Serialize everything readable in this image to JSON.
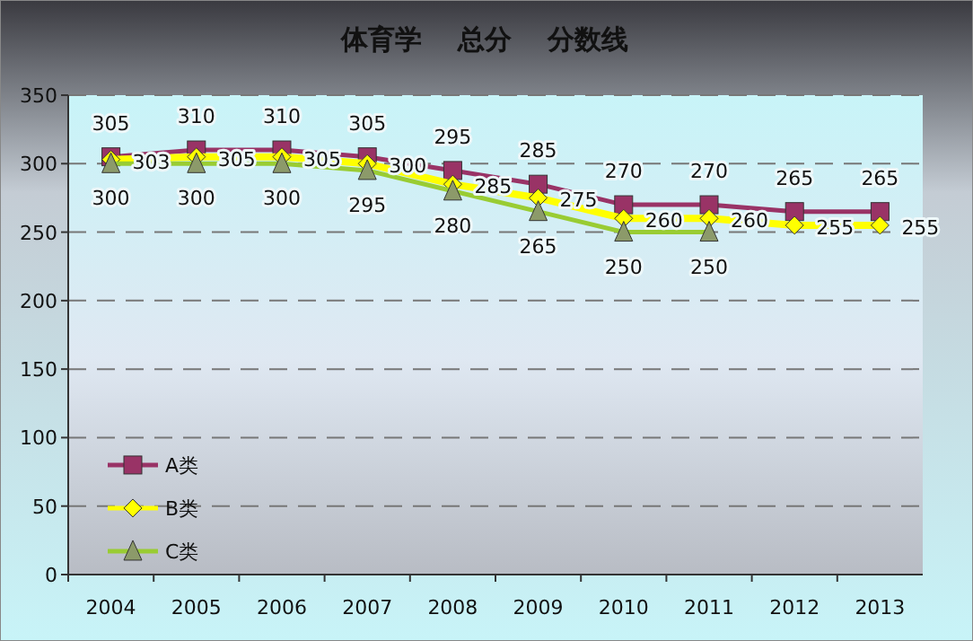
{
  "chart_data": {
    "type": "line",
    "title": "体育学　 总分　 分数线",
    "categories": [
      "2004",
      "2005",
      "2006",
      "2007",
      "2008",
      "2009",
      "2010",
      "2011",
      "2012",
      "2013"
    ],
    "series": [
      {
        "name": "A类",
        "color": "#993366",
        "marker": "square",
        "values": [
          305,
          310,
          310,
          305,
          295,
          285,
          270,
          270,
          265,
          265
        ]
      },
      {
        "name": "B类",
        "color": "#ffff00",
        "marker": "diamond",
        "values": [
          303,
          305,
          305,
          300,
          285,
          275,
          260,
          260,
          255,
          255
        ]
      },
      {
        "name": "C类",
        "color": "#99cc33",
        "marker": "triangle",
        "values": [
          300,
          300,
          300,
          295,
          280,
          265,
          250,
          250,
          null,
          null
        ]
      }
    ],
    "ylim": [
      0,
      350
    ],
    "yticks": [
      0,
      50,
      100,
      150,
      200,
      250,
      300,
      350
    ],
    "grid": "y",
    "legend": "bottom left",
    "data_labels": true
  }
}
